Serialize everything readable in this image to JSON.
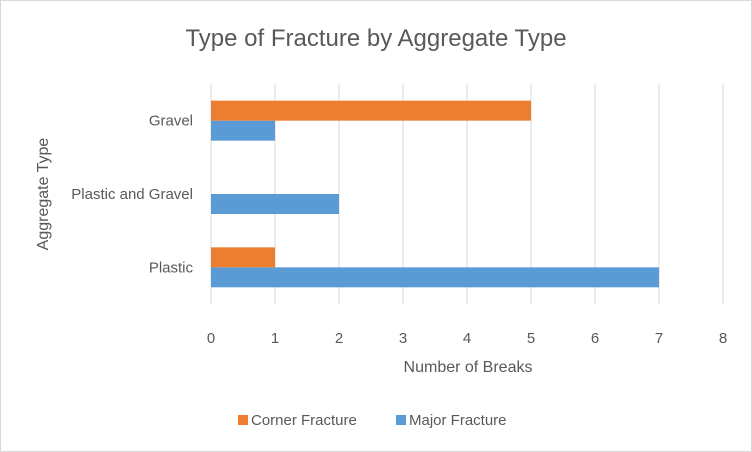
{
  "chart_data": {
    "type": "bar",
    "orientation": "horizontal",
    "title": "Type of Fracture by Aggregate Type",
    "xlabel": "Number of Breaks",
    "ylabel": "Aggregate Type",
    "categories": [
      "Plastic",
      "Plastic and Gravel",
      "Gravel"
    ],
    "series": [
      {
        "name": "Major Fracture",
        "values": [
          7,
          2,
          1
        ],
        "color": "#5b9bd5"
      },
      {
        "name": "Corner Fracture",
        "values": [
          1,
          0,
          5
        ],
        "color": "#ed7d31"
      }
    ],
    "xlim": [
      0,
      8
    ],
    "x_ticks": [
      "0",
      "1",
      "2",
      "3",
      "4",
      "5",
      "6",
      "7",
      "8"
    ],
    "grid": true,
    "legend_position": "bottom"
  }
}
